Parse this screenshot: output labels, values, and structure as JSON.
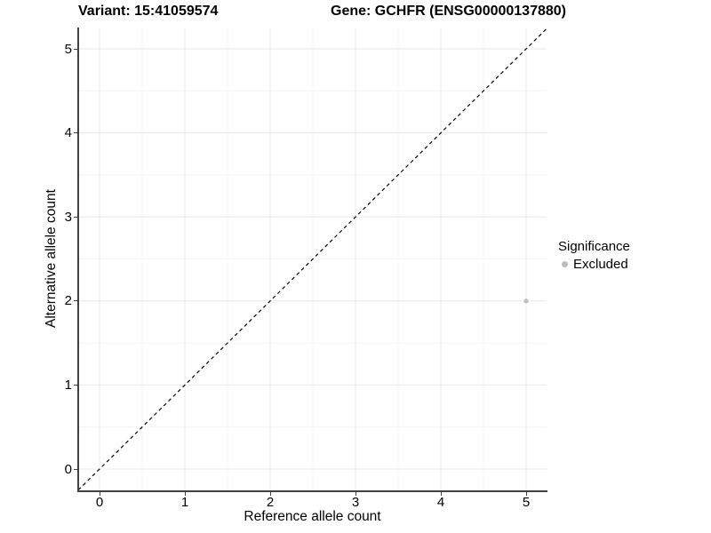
{
  "header": {
    "variant_title": "Variant: 15:41059574",
    "gene_title": "Gene: GCHFR (ENSG00000137880)"
  },
  "legend": {
    "title": "Significance",
    "items": [
      {
        "label": "Excluded",
        "color": "#bdbdbd"
      }
    ]
  },
  "colors": {
    "background": "#ffffff",
    "axis": "#404040",
    "grid_major": "#e8e8e8",
    "grid_minor": "#f4f4f4",
    "reference_line": "#000000",
    "point": "#bdbdbd",
    "text": "#000000"
  },
  "chart_data": {
    "type": "scatter",
    "title_left": "Variant: 15:41059574",
    "title_right": "Gene: GCHFR (ENSG00000137880)",
    "xlabel": "Reference allele count",
    "ylabel": "Alternative allele count",
    "x_ticks": [
      0,
      1,
      2,
      3,
      4,
      5
    ],
    "y_ticks": [
      0,
      1,
      2,
      3,
      4,
      5
    ],
    "xlim": [
      -0.25,
      5.25
    ],
    "ylim": [
      -0.25,
      5.25
    ],
    "grid": {
      "major": true,
      "minor": true,
      "minor_step": 0.5
    },
    "series": [
      {
        "name": "Excluded",
        "color": "#bdbdbd",
        "points": [
          {
            "x": 5,
            "y": 2
          }
        ],
        "point_radius": 2.5
      }
    ],
    "reference_line": {
      "kind": "identity",
      "slope": 1,
      "intercept": 0,
      "style": "dashed"
    },
    "legend_position": "right"
  }
}
